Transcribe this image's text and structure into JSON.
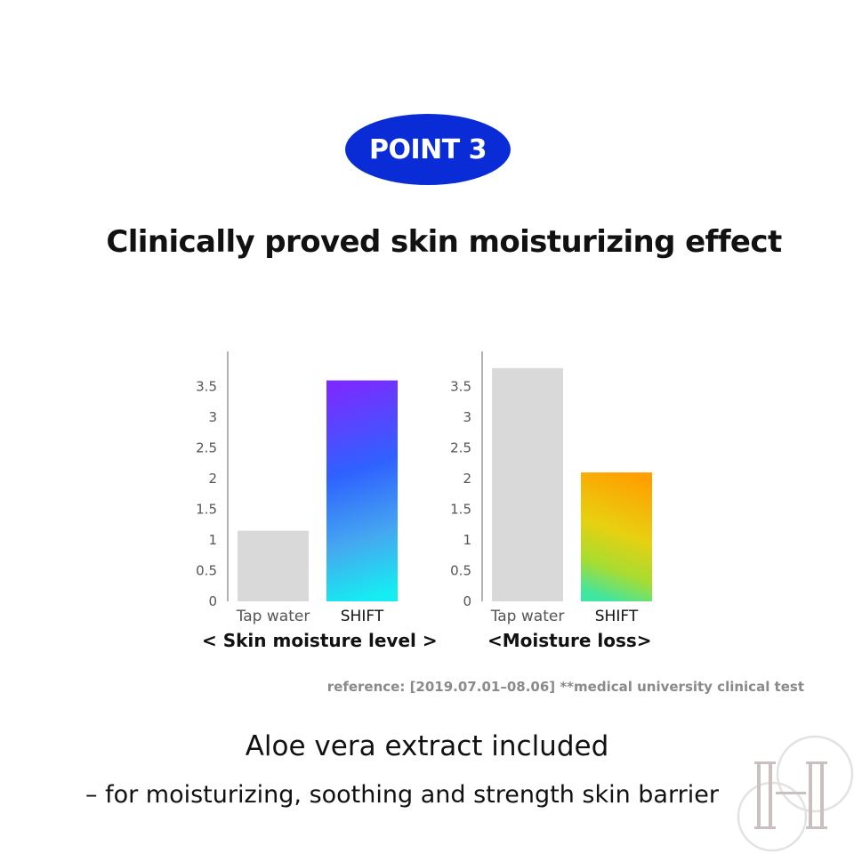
{
  "badge": "POINT 3",
  "headline": "Clinically proved skin moisturizing effect",
  "chart_data": [
    {
      "type": "bar",
      "categories": [
        "Tap water",
        "SHIFT"
      ],
      "values": [
        1.15,
        3.6
      ],
      "ylim": [
        0,
        4
      ],
      "yticks": [
        "0",
        "0.5",
        "1",
        "1.5",
        "2",
        "2.5",
        "3",
        "3.5"
      ],
      "title": "< Skin moisture level >",
      "colors": [
        "#d9d9d9",
        "gradient-violet-blue-cyan"
      ]
    },
    {
      "type": "bar",
      "categories": [
        "Tap water",
        "SHIFT"
      ],
      "values": [
        3.8,
        2.1
      ],
      "ylim": [
        0,
        4
      ],
      "yticks": [
        "0",
        "0.5",
        "1",
        "1.5",
        "2",
        "2.5",
        "3",
        "3.5"
      ],
      "title": "<Moisture loss>",
      "colors": [
        "#d9d9d9",
        "gradient-orange-yellow-green"
      ]
    }
  ],
  "reference": "reference: [2019.07.01–08.06] **medical university clinical test",
  "footer": {
    "line1": "Aloe vera extract included",
    "line2": "– for moisturizing, soothing and strength skin barrier"
  },
  "logo_icon": "monogram-logo-icon"
}
